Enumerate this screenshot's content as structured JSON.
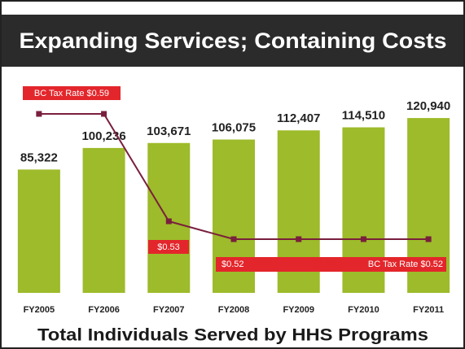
{
  "chart_data": {
    "type": "bar",
    "title": "Expanding Services; Containing Costs",
    "subtitle": "Total Individuals Served by HHS Programs",
    "categories": [
      "FY2005",
      "FY2006",
      "FY2007",
      "FY2008",
      "FY2009",
      "FY2010",
      "FY2011"
    ],
    "series": [
      {
        "color": "#9dbb2a",
        "values": [
          85322,
          100236,
          103671,
          106075,
          112407,
          114510,
          120940
        ],
        "value_labels": [
          "85,322",
          "100,236",
          "103,671",
          "106,075",
          "112,407",
          "114,510",
          "120,940"
        ]
      },
      {
        "type": "line",
        "axis": "y2",
        "color": "#7a1f3d",
        "values": [
          0.59,
          0.59,
          0.53,
          0.52,
          0.52,
          0.52,
          0.52
        ]
      }
    ],
    "ylim": [
      0,
      130000
    ],
    "y2lim": [
      0.49,
      0.595
    ],
    "annotations": [
      "BC Tax Rate $0.59",
      "$0.53",
      "$0.52",
      "BC Tax Rate $0.52"
    ]
  }
}
